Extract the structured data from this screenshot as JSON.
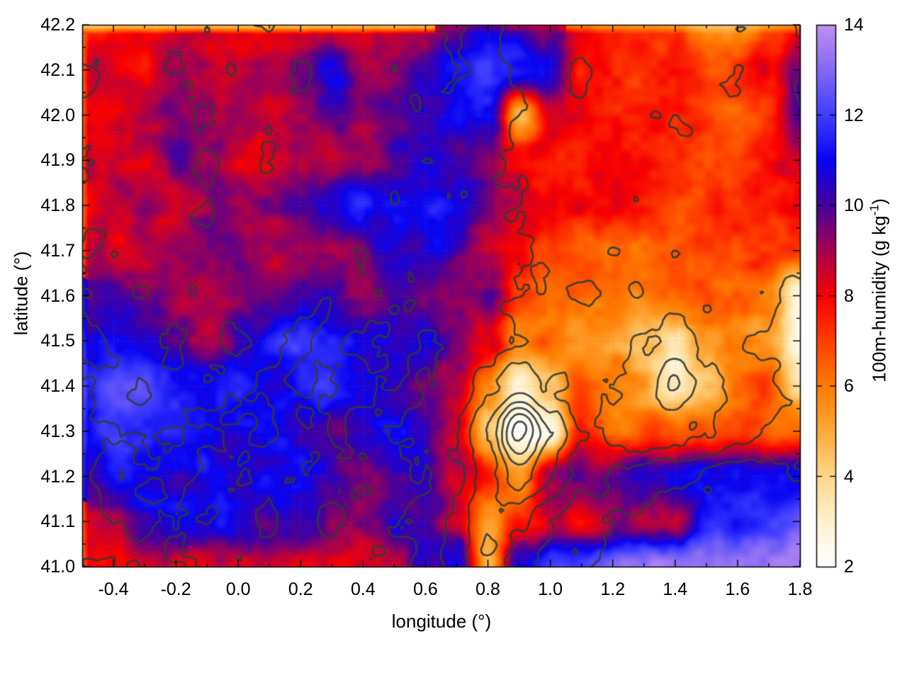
{
  "figure": {
    "background": "#ffffff",
    "title": ""
  },
  "axes": {
    "x": {
      "label": "longitude (°)",
      "min": -0.5,
      "max": 1.8,
      "major_ticks": [
        -0.4,
        -0.2,
        0.0,
        0.2,
        0.4,
        0.6,
        0.8,
        1.0,
        1.2,
        1.4,
        1.6,
        1.8
      ],
      "minor_ticks": [
        -0.3,
        -0.1,
        0.1,
        0.3,
        0.5,
        0.7,
        0.9,
        1.1,
        1.3,
        1.5,
        1.7
      ],
      "tick_format_decimals": 1
    },
    "y": {
      "label": "latitude (°)",
      "min": 41.0,
      "max": 42.2,
      "major_ticks": [
        41.0,
        41.1,
        41.2,
        41.3,
        41.4,
        41.5,
        41.6,
        41.7,
        41.8,
        41.9,
        42.0,
        42.1,
        42.2
      ],
      "minor_ticks": [
        41.05,
        41.15,
        41.25,
        41.35,
        41.45,
        41.55,
        41.65,
        41.75,
        41.85,
        41.95,
        42.05,
        42.15
      ],
      "tick_format_decimals": 1
    }
  },
  "colorbar": {
    "label_main": "100m-humidity (g kg",
    "label_sup": "-1",
    "label_close": ")",
    "min": 2,
    "max": 14,
    "major_ticks": [
      2,
      4,
      6,
      8,
      10,
      12,
      14
    ],
    "palette": [
      [
        2,
        "#ffffff"
      ],
      [
        3,
        "#fff2d0"
      ],
      [
        4,
        "#ffd78a"
      ],
      [
        5,
        "#ffa93a"
      ],
      [
        6,
        "#ff7c00"
      ],
      [
        7,
        "#ff3f00"
      ],
      [
        8,
        "#f80000"
      ],
      [
        9,
        "#a6004e"
      ],
      [
        10,
        "#47009b"
      ],
      [
        11,
        "#0804f2"
      ],
      [
        12,
        "#3d3dff"
      ],
      [
        13,
        "#8468f4"
      ],
      [
        14,
        "#bd90f2"
      ]
    ]
  },
  "style": {
    "contour_color": "rgba(52,58,52,0.9)",
    "grid_dot_color": "rgba(110,110,110,0.45)",
    "axis_color": "#000000"
  },
  "chart_data": {
    "type": "heatmap",
    "title": "",
    "xlabel": "longitude (°)",
    "ylabel": "latitude (°)",
    "value_label": "100m-humidity (g kg-1)",
    "x_range": [
      -0.5,
      1.8
    ],
    "y_range": [
      41.0,
      42.2
    ],
    "value_range": [
      2,
      14
    ],
    "grid_lons": [
      -0.5,
      -0.4,
      -0.3,
      -0.2,
      -0.1,
      0.0,
      0.1,
      0.2,
      0.3,
      0.4,
      0.5,
      0.6,
      0.7,
      0.8,
      0.9,
      1.0,
      1.1,
      1.2,
      1.3,
      1.4,
      1.5,
      1.6,
      1.7,
      1.8
    ],
    "grid_lats": [
      42.2,
      42.1,
      42.0,
      41.9,
      41.8,
      41.7,
      41.6,
      41.5,
      41.4,
      41.3,
      41.2,
      41.1,
      41.0
    ],
    "humidity": [
      [
        8.2,
        8.0,
        8.3,
        8.1,
        8.4,
        8.2,
        8.0,
        8.3,
        8.1,
        8.2,
        8.5,
        9.0,
        10.4,
        11.0,
        10.6,
        10.2,
        8.0,
        7.6,
        7.4,
        7.2,
        5.5,
        5.0,
        6.5,
        7.7
      ],
      [
        8.4,
        8.6,
        8.2,
        9.0,
        8.5,
        8.3,
        8.7,
        9.2,
        10.6,
        8.8,
        9.0,
        9.6,
        10.8,
        11.4,
        11.2,
        10.4,
        7.7,
        7.8,
        7.5,
        7.2,
        7.0,
        7.3,
        7.6,
        9.5
      ],
      [
        8.3,
        8.0,
        8.6,
        9.3,
        8.8,
        9.0,
        8.5,
        8.8,
        9.5,
        9.0,
        9.6,
        10.4,
        11.0,
        10.6,
        5.0,
        8.8,
        7.5,
        7.7,
        7.4,
        7.1,
        7.2,
        7.0,
        7.4,
        10.0
      ],
      [
        8.5,
        9.0,
        8.4,
        9.5,
        9.2,
        8.6,
        9.0,
        9.4,
        8.8,
        9.2,
        10.2,
        10.8,
        10.0,
        9.4,
        8.2,
        7.6,
        7.8,
        7.5,
        7.2,
        7.0,
        7.3,
        7.1,
        7.5,
        8.5
      ],
      [
        8.2,
        8.6,
        9.2,
        8.8,
        9.4,
        9.0,
        9.3,
        9.6,
        10.4,
        11.0,
        11.3,
        11.2,
        10.6,
        9.6,
        8.4,
        7.8,
        7.5,
        7.7,
        7.3,
        7.1,
        7.0,
        7.2,
        7.4,
        7.6
      ],
      [
        8.8,
        8.4,
        9.0,
        9.4,
        9.1,
        9.5,
        9.2,
        9.6,
        9.3,
        10.2,
        10.8,
        10.4,
        9.6,
        8.8,
        8.0,
        7.4,
        6.8,
        6.5,
        6.7,
        6.9,
        6.6,
        6.8,
        7.0,
        7.2
      ],
      [
        9.2,
        9.6,
        9.3,
        9.0,
        9.4,
        9.7,
        9.2,
        9.5,
        10.0,
        9.4,
        9.8,
        9.2,
        8.6,
        9.8,
        7.6,
        6.4,
        6.0,
        6.2,
        5.8,
        6.0,
        6.3,
        6.1,
        5.5,
        2.8
      ],
      [
        10.6,
        11.0,
        10.5,
        9.6,
        9.2,
        9.8,
        10.8,
        11.2,
        11.0,
        10.6,
        11.0,
        10.4,
        9.2,
        8.4,
        5.5,
        6.2,
        5.8,
        5.5,
        4.8,
        3.8,
        5.2,
        6.0,
        5.6,
        3.0
      ],
      [
        11.6,
        12.4,
        11.8,
        11.2,
        10.8,
        11.2,
        10.6,
        11.0,
        11.4,
        10.8,
        10.4,
        9.6,
        8.8,
        6.0,
        3.2,
        4.5,
        6.5,
        6.0,
        5.0,
        3.5,
        4.5,
        6.2,
        6.6,
        4.0
      ],
      [
        11.2,
        12.0,
        11.5,
        11.8,
        11.3,
        10.8,
        11.2,
        10.6,
        10.2,
        10.8,
        11.0,
        10.2,
        8.8,
        4.5,
        2.2,
        3.0,
        7.5,
        6.5,
        7.0,
        6.2,
        6.6,
        7.0,
        6.4,
        6.8
      ],
      [
        10.8,
        11.4,
        11.0,
        10.4,
        10.8,
        10.2,
        10.6,
        11.0,
        10.4,
        9.6,
        10.4,
        10.8,
        9.2,
        7.8,
        5.5,
        9.0,
        9.2,
        9.6,
        10.8,
        11.2,
        11.0,
        11.3,
        11.0,
        11.3
      ],
      [
        8.6,
        9.2,
        10.6,
        11.0,
        10.5,
        10.8,
        10.2,
        10.6,
        9.4,
        9.8,
        10.4,
        9.6,
        8.4,
        5.0,
        7.5,
        8.8,
        8.5,
        8.8,
        8.6,
        9.2,
        11.6,
        11.4,
        12.0,
        12.4
      ],
      [
        8.2,
        8.0,
        8.4,
        8.2,
        8.6,
        8.3,
        8.5,
        8.2,
        8.6,
        8.4,
        8.7,
        10.5,
        11.5,
        4.5,
        11.0,
        12.2,
        12.6,
        12.8,
        13.0,
        13.1,
        13.3,
        13.2,
        13.5,
        13.8
      ]
    ],
    "contours": {
      "levels": [
        1,
        2,
        3,
        4,
        5,
        6,
        7,
        8
      ],
      "terrain": [
        [
          1.2,
          1.5,
          1.8,
          1.5,
          1.2,
          1.8,
          2.2,
          1.6,
          1.3,
          1.8,
          1.4,
          1.7,
          2.1,
          1.6,
          2.4,
          2.8,
          2.2,
          2.6,
          3.0,
          2.4,
          2.8,
          2.2,
          2.6,
          2.0
        ],
        [
          0.8,
          1.2,
          1.6,
          2.0,
          1.4,
          1.0,
          1.5,
          2.0,
          1.6,
          1.2,
          1.8,
          1.4,
          1.9,
          1.5,
          2.2,
          2.6,
          3.0,
          2.4,
          2.8,
          2.3,
          2.7,
          3.1,
          2.5,
          2.9
        ],
        [
          1.4,
          1.8,
          1.3,
          1.7,
          2.1,
          1.6,
          1.2,
          1.7,
          1.3,
          1.8,
          1.5,
          2.0,
          1.6,
          1.3,
          2.0,
          2.5,
          2.9,
          2.3,
          2.6,
          3.0,
          2.5,
          2.8,
          2.4,
          2.7
        ],
        [
          0.9,
          1.3,
          1.8,
          1.4,
          1.9,
          1.5,
          1.1,
          1.6,
          2.0,
          1.5,
          1.2,
          1.7,
          1.4,
          1.8,
          2.2,
          2.7,
          2.3,
          2.8,
          2.4,
          2.9,
          2.6,
          2.2,
          2.7,
          2.3
        ],
        [
          1.3,
          1.7,
          1.2,
          1.6,
          2.0,
          1.4,
          1.8,
          1.3,
          1.7,
          1.4,
          1.0,
          1.5,
          1.9,
          1.5,
          2.0,
          2.4,
          2.8,
          2.5,
          2.9,
          2.4,
          2.8,
          2.5,
          2.1,
          2.6
        ],
        [
          0.8,
          1.2,
          1.7,
          1.3,
          1.8,
          1.3,
          1.6,
          1.2,
          1.6,
          1.1,
          1.5,
          1.2,
          1.6,
          1.3,
          1.8,
          2.2,
          2.6,
          2.2,
          2.7,
          2.3,
          2.7,
          2.4,
          2.8,
          2.4
        ],
        [
          1.2,
          1.6,
          1.1,
          1.5,
          1.1,
          1.6,
          1.2,
          1.5,
          1.1,
          1.4,
          1.0,
          1.4,
          1.1,
          1.5,
          1.9,
          2.3,
          1.9,
          2.4,
          2.0,
          2.5,
          2.1,
          2.6,
          2.2,
          1.8
        ],
        [
          0.7,
          1.1,
          1.5,
          1.0,
          1.4,
          1.0,
          1.3,
          0.9,
          1.3,
          0.9,
          1.2,
          0.9,
          1.3,
          1.7,
          2.1,
          2.5,
          2.1,
          2.6,
          3.0,
          3.4,
          2.8,
          2.3,
          1.9,
          1.5
        ],
        [
          1.0,
          1.4,
          0.9,
          1.3,
          0.9,
          1.2,
          0.8,
          1.2,
          0.8,
          1.1,
          0.8,
          1.1,
          1.5,
          2.5,
          3.5,
          3.0,
          2.6,
          3.0,
          3.5,
          5.0,
          3.6,
          2.8,
          2.2,
          1.7
        ],
        [
          0.6,
          1.0,
          1.4,
          0.9,
          1.2,
          0.8,
          1.1,
          0.7,
          1.1,
          0.7,
          1.0,
          1.2,
          2.0,
          4.0,
          8.5,
          5.0,
          3.0,
          3.4,
          3.8,
          3.4,
          2.9,
          2.4,
          1.9,
          1.4
        ],
        [
          0.9,
          1.3,
          0.8,
          1.2,
          0.7,
          1.1,
          0.6,
          1.0,
          0.6,
          0.9,
          0.7,
          1.0,
          1.8,
          3.5,
          5.5,
          4.0,
          2.5,
          2.0,
          1.6,
          1.2,
          0.9,
          0.7,
          0.5,
          0.8
        ],
        [
          0.5,
          0.9,
          1.3,
          0.8,
          1.1,
          0.6,
          1.0,
          0.5,
          0.9,
          0.6,
          0.8,
          1.2,
          2.2,
          4.2,
          3.0,
          2.0,
          1.4,
          1.0,
          0.7,
          0.5,
          0.3,
          0.5,
          0.2,
          0.4
        ],
        [
          0.8,
          1.2,
          0.7,
          1.1,
          0.6,
          1.0,
          0.5,
          0.9,
          0.5,
          0.8,
          1.0,
          1.5,
          2.6,
          3.8,
          2.2,
          1.4,
          0.9,
          0.6,
          0.4,
          0.2,
          0.5,
          0.3,
          0.1,
          0.3
        ]
      ]
    }
  }
}
